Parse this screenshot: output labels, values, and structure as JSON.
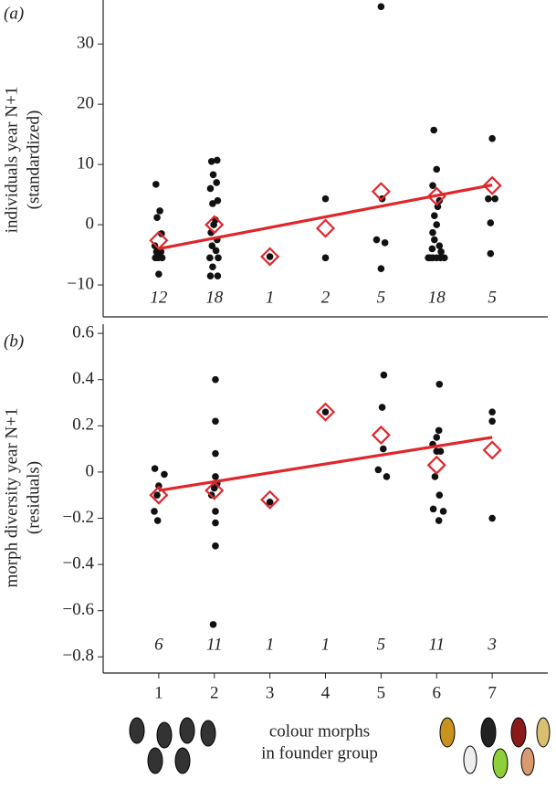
{
  "chart_data": [
    {
      "type": "scatter",
      "panel_label": "(a)",
      "y_label": [
        "individuals year N+1",
        "(standardized)"
      ],
      "xlim": [
        0,
        8
      ],
      "ylim": [
        -15.3,
        37.3
      ],
      "yticks": [
        {
          "value": -10,
          "label": "−10"
        },
        0,
        10,
        20,
        30
      ],
      "series": [
        {
          "marker": "dot",
          "color": "#111111",
          "x": [
            0.95,
            1.02,
            0.97,
            1.05,
            0.93,
            0.96,
            1.0,
            1.04,
            0.94,
            0.99,
            1.06,
            1.0,
            1.95,
            2.05,
            1.98,
            2.04,
            1.93,
            2.06,
            1.97,
            2.02,
            1.99,
            1.94,
            2.05,
            1.96,
            2.03,
            1.92,
            2.07,
            1.97,
            1.93,
            2.06,
            3.0,
            4.0,
            4.0,
            5.0,
            5.02,
            4.92,
            5.07,
            5.0,
            5.95,
            6.0,
            5.93,
            6.05,
            6.02,
            5.96,
            6.0,
            5.93,
            5.96,
            6.05,
            5.92,
            6.08,
            5.85,
            5.93,
            6.0,
            6.07,
            6.14,
            5.88,
            7.0,
            6.93,
            7.05,
            6.97,
            6.97
          ],
          "values": [
            6.7,
            2.3,
            1.2,
            -1.5,
            -3.5,
            -4.5,
            -4.5,
            -4.5,
            -5.5,
            -5.5,
            -5.5,
            -8.2,
            10.5,
            10.7,
            8.3,
            7,
            6,
            4,
            3.5,
            0.8,
            0,
            -1.3,
            -2.5,
            -3.5,
            -4.3,
            -5.5,
            -5.5,
            -7,
            -8.5,
            -8.5,
            -5.3,
            4.3,
            -5.5,
            36.2,
            4.3,
            -2.5,
            -3,
            -7.3,
            15.7,
            9.2,
            6.5,
            4,
            3,
            1.5,
            0,
            -1.3,
            -2.5,
            -3.5,
            -4,
            -4.5,
            -5.5,
            -5.5,
            -5.5,
            -5.5,
            -5.5,
            -5.5,
            14.3,
            4.3,
            4.3,
            0.3,
            -4.8
          ]
        },
        {
          "marker": "diamond",
          "color": "#e0262b",
          "x": [
            1,
            2,
            3,
            4,
            5,
            6,
            7
          ],
          "values": [
            -2.6,
            0,
            -5.3,
            -0.6,
            5.5,
            4.7,
            6.5
          ]
        }
      ],
      "trend": {
        "color": "#e0262b",
        "x": [
          1,
          7
        ],
        "values": [
          -4,
          6.6
        ]
      },
      "counts": {
        "x": [
          1,
          2,
          3,
          4,
          5,
          6,
          7
        ],
        "values": [
          12,
          18,
          1,
          2,
          5,
          18,
          5
        ]
      }
    },
    {
      "type": "scatter",
      "panel_label": "(b)",
      "y_label": [
        "morph diversity year N+1",
        "(residuals)"
      ],
      "x_label": [
        "colour morphs",
        "in founder group"
      ],
      "xlim": [
        0,
        8
      ],
      "ylim": [
        -0.87,
        0.64
      ],
      "xticks": [
        1,
        2,
        3,
        4,
        5,
        6,
        7
      ],
      "yticks": [
        {
          "value": -0.8,
          "label": "−0.8"
        },
        {
          "value": -0.6,
          "label": "−0.6"
        },
        {
          "value": -0.4,
          "label": "−0.4"
        },
        {
          "value": -0.2,
          "label": "−0.2"
        },
        0,
        0.2,
        0.4,
        0.6
      ],
      "series": [
        {
          "marker": "dot",
          "color": "#111111",
          "x": [
            0.93,
            1.1,
            1.0,
            0.97,
            0.92,
            0.98,
            2.02,
            2.02,
            2.02,
            2.02,
            2.05,
            1.95,
            2.0,
            2.02,
            2.02,
            2.02,
            1.98,
            3.0,
            4.0,
            5.05,
            5.02,
            5.04,
            4.95,
            5.1,
            6.05,
            6.04,
            6.0,
            5.93,
            6.0,
            6.07,
            5.97,
            6.05,
            5.94,
            6.12,
            6.04,
            7.0,
            7.0,
            7.0
          ],
          "values": [
            0.015,
            -0.01,
            -0.06,
            -0.1,
            -0.17,
            -0.21,
            0.4,
            0.22,
            0.08,
            -0.02,
            -0.05,
            -0.1,
            -0.07,
            -0.17,
            -0.22,
            -0.32,
            -0.66,
            -0.13,
            0.26,
            0.42,
            0.28,
            0.1,
            0.01,
            -0.02,
            0.38,
            0.18,
            0.15,
            0.12,
            0.09,
            0.09,
            -0.02,
            -0.1,
            -0.16,
            -0.17,
            -0.21,
            0.26,
            0.22,
            -0.2
          ]
        },
        {
          "marker": "diamond",
          "color": "#e0262b",
          "x": [
            1,
            2,
            3,
            4,
            5,
            6,
            7
          ],
          "values": [
            -0.1,
            -0.08,
            -0.12,
            0.26,
            0.16,
            0.03,
            0.095
          ]
        }
      ],
      "trend": {
        "color": "#e0262b",
        "x": [
          1,
          7
        ],
        "values": [
          -0.08,
          0.15
        ]
      },
      "counts": {
        "x": [
          1,
          2,
          3,
          4,
          5,
          6,
          7
        ],
        "values": [
          6,
          11,
          1,
          1,
          5,
          11,
          3
        ]
      }
    }
  ]
}
